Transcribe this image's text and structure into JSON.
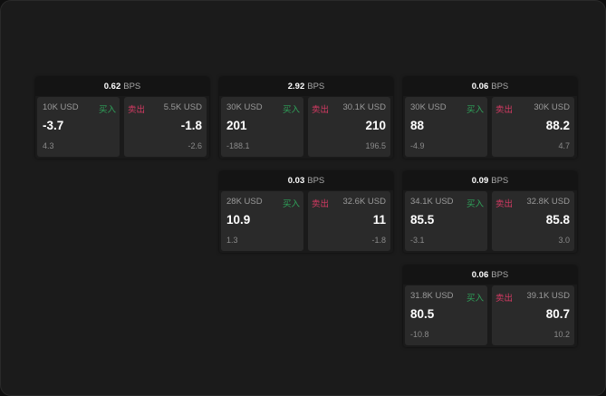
{
  "labels": {
    "unit": "BPS",
    "buy": "买入",
    "sell": "卖出"
  },
  "colors": {
    "buy": "#2fa35a",
    "sell": "#d43a63"
  },
  "cards": [
    {
      "spread": "0.62",
      "bid": {
        "size": "10K USD",
        "price": "-3.7",
        "change": "4.3"
      },
      "ask": {
        "size": "5.5K USD",
        "price": "-1.8",
        "change": "-2.6"
      }
    },
    {
      "spread": "2.92",
      "bid": {
        "size": "30K USD",
        "price": "201",
        "change": "-188.1"
      },
      "ask": {
        "size": "30.1K USD",
        "price": "210",
        "change": "196.5"
      }
    },
    {
      "spread": "0.06",
      "bid": {
        "size": "30K USD",
        "price": "88",
        "change": "-4.9"
      },
      "ask": {
        "size": "30K USD",
        "price": "88.2",
        "change": "4.7"
      }
    },
    {
      "spread": "0.03",
      "bid": {
        "size": "28K USD",
        "price": "10.9",
        "change": "1.3"
      },
      "ask": {
        "size": "32.6K USD",
        "price": "11",
        "change": "-1.8"
      }
    },
    {
      "spread": "0.09",
      "bid": {
        "size": "34.1K USD",
        "price": "85.5",
        "change": "-3.1"
      },
      "ask": {
        "size": "32.8K USD",
        "price": "85.8",
        "change": "3.0"
      }
    },
    {
      "spread": "0.06",
      "bid": {
        "size": "31.8K USD",
        "price": "80.5",
        "change": "-10.8"
      },
      "ask": {
        "size": "39.1K USD",
        "price": "80.7",
        "change": "10.2"
      }
    }
  ]
}
